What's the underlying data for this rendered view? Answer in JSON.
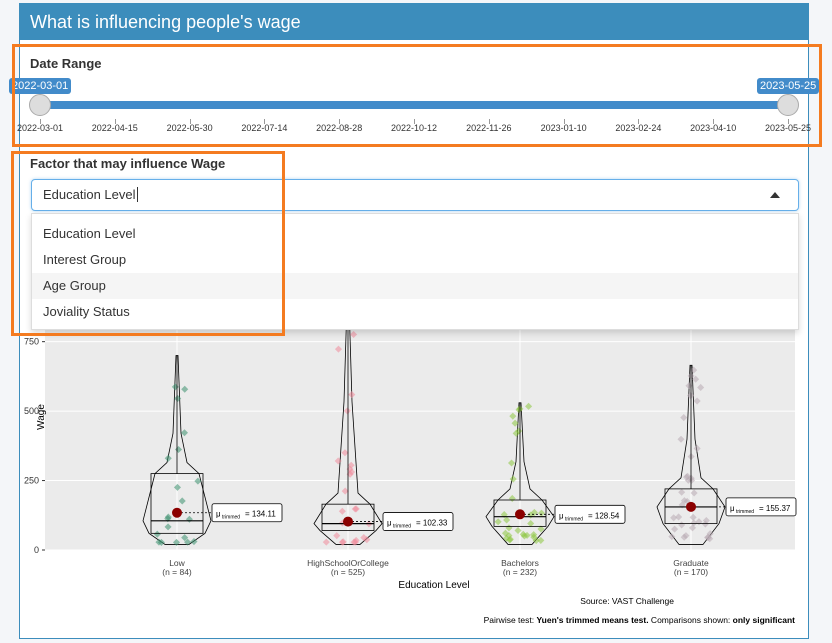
{
  "header": {
    "title": "What is influencing people's wage"
  },
  "date_range": {
    "label": "Date Range",
    "from": "2022-03-01",
    "to": "2023-05-25",
    "ticks": [
      "2022-03-01",
      "2022-04-15",
      "2022-05-30",
      "2022-07-14",
      "2022-08-28",
      "2022-10-12",
      "2022-11-26",
      "2023-01-10",
      "2023-02-24",
      "2023-04-10",
      "2023-05-25"
    ]
  },
  "factor": {
    "label": "Factor that may influence Wage",
    "selected": "Education Level",
    "options": [
      "Education Level",
      "Interest Group",
      "Age Group",
      "Joviality Status"
    ],
    "highlighted_option": "Age Group"
  },
  "chart_data": {
    "type": "violin-box",
    "xlabel": "Education Level",
    "ylabel": "Wage",
    "yticks": [
      0,
      250,
      500,
      750
    ],
    "ylim": [
      0,
      900
    ],
    "groups": [
      {
        "name": "Low",
        "n_label": "(n = 84)",
        "mean_label": "134.11",
        "mean": 134.11,
        "q1": 60,
        "median": 105,
        "q3": 275,
        "max": 700,
        "color": "#3a8f6d"
      },
      {
        "name": "HighSchoolOrCollege",
        "n_label": "(n = 525)",
        "mean_label": "102.33",
        "mean": 102.33,
        "q1": 70,
        "median": 95,
        "q3": 165,
        "max": 890,
        "color": "#f08a9a"
      },
      {
        "name": "Bachelors",
        "n_label": "(n = 232)",
        "mean_label": "128.54",
        "mean": 128.54,
        "q1": 85,
        "median": 120,
        "q3": 180,
        "max": 530,
        "color": "#8cc63f"
      },
      {
        "name": "Graduate",
        "n_label": "(n = 170)",
        "mean_label": "155.37",
        "mean": 155.37,
        "q1": 95,
        "median": 155,
        "q3": 220,
        "max": 665,
        "color": "#b8a9b3"
      }
    ],
    "source": "Source: VAST Challenge",
    "footnote": {
      "prefix": "Pairwise test: ",
      "test": "Yuen's trimmed means test.",
      "middle": " Comparisons shown: ",
      "suffix": "only significant"
    },
    "mean_marker_color": "#8b0000"
  },
  "colors": {
    "header": "#3c8dbc",
    "accent": "#428bca",
    "highlight": "#f47b20"
  }
}
